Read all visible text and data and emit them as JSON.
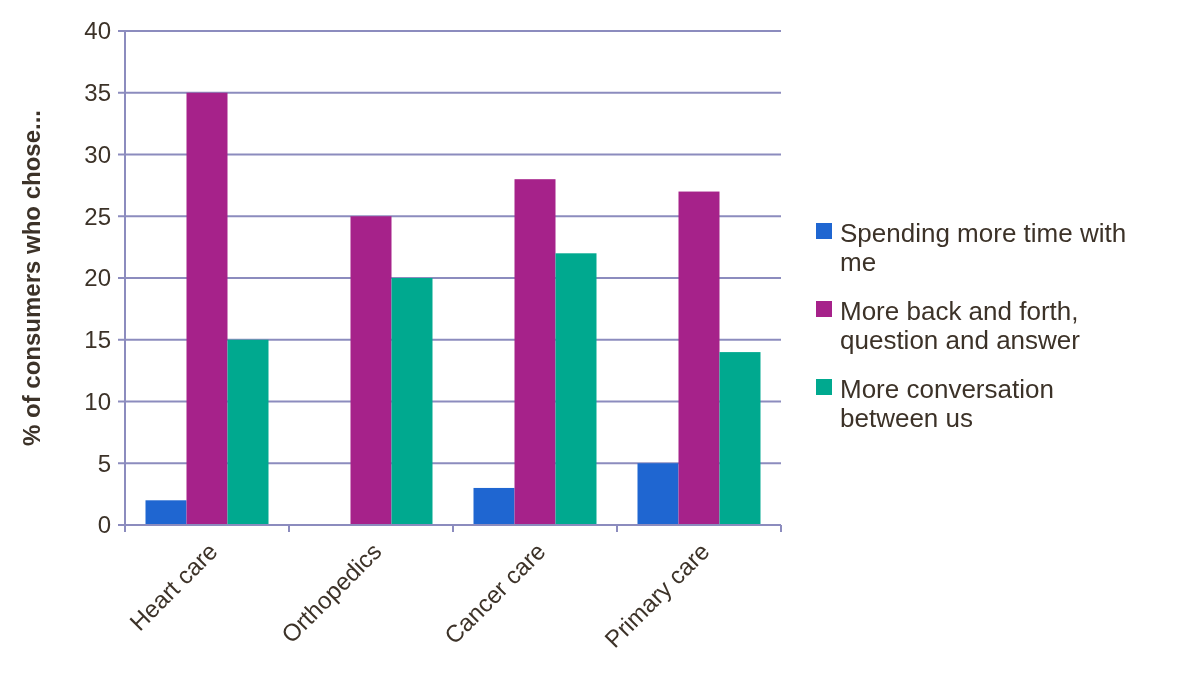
{
  "chart_data": {
    "type": "bar",
    "ylabel": "% of consumers who chose...",
    "categories": [
      "Heart care",
      "Orthopedics",
      "Cancer care",
      "Primary care"
    ],
    "series": [
      {
        "name": "Spending more time with me",
        "color": "#1f66d1",
        "values": [
          2,
          0,
          3,
          5
        ]
      },
      {
        "name": "More back and forth, question and answer",
        "color": "#a6228a",
        "values": [
          35,
          25,
          28,
          27
        ]
      },
      {
        "name": "More conversation between us",
        "color": "#00a98f",
        "values": [
          15,
          20,
          22,
          14
        ]
      }
    ],
    "ylim": [
      0,
      40
    ],
    "yticks": [
      0,
      5,
      10,
      15,
      20,
      25,
      30,
      35,
      40
    ],
    "grid": "y",
    "legend": "right"
  }
}
